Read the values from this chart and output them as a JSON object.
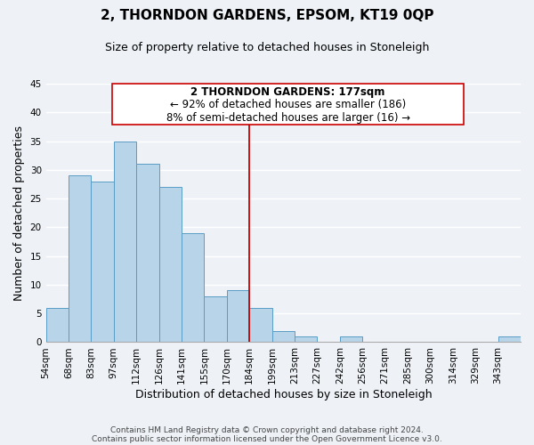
{
  "title": "2, THORNDON GARDENS, EPSOM, KT19 0QP",
  "subtitle": "Size of property relative to detached houses in Stoneleigh",
  "xlabel": "Distribution of detached houses by size in Stoneleigh",
  "ylabel": "Number of detached properties",
  "bin_labels": [
    "54sqm",
    "68sqm",
    "83sqm",
    "97sqm",
    "112sqm",
    "126sqm",
    "141sqm",
    "155sqm",
    "170sqm",
    "184sqm",
    "199sqm",
    "213sqm",
    "227sqm",
    "242sqm",
    "256sqm",
    "271sqm",
    "285sqm",
    "300sqm",
    "314sqm",
    "329sqm",
    "343sqm"
  ],
  "bar_heights": [
    6,
    29,
    28,
    35,
    31,
    27,
    19,
    8,
    9,
    6,
    2,
    1,
    0,
    1,
    0,
    0,
    0,
    0,
    0,
    0,
    1
  ],
  "bar_color": "#b8d4e8",
  "bar_edge_color": "#5a9cc5",
  "vline_x_bar_idx": 9,
  "vline_color": "#cc0000",
  "ylim": [
    0,
    45
  ],
  "yticks": [
    0,
    5,
    10,
    15,
    20,
    25,
    30,
    35,
    40,
    45
  ],
  "annotation_title": "2 THORNDON GARDENS: 177sqm",
  "annotation_line1": "← 92% of detached houses are smaller (186)",
  "annotation_line2": "8% of semi-detached houses are larger (16) →",
  "footer1": "Contains HM Land Registry data © Crown copyright and database right 2024.",
  "footer2": "Contains public sector information licensed under the Open Government Licence v3.0.",
  "background_color": "#eef2f7",
  "grid_color": "#ffffff",
  "title_fontsize": 11,
  "subtitle_fontsize": 9,
  "axis_label_fontsize": 9,
  "tick_fontsize": 7.5,
  "annotation_fontsize": 8.5,
  "footer_fontsize": 6.5
}
